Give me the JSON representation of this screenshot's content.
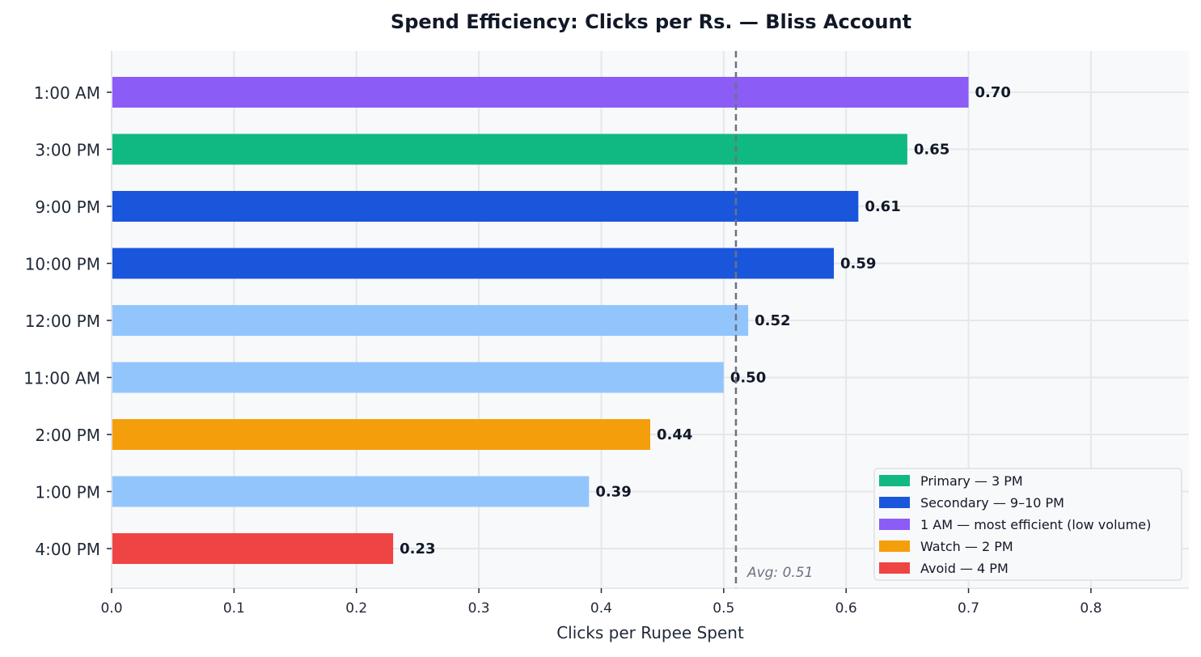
{
  "chart_data": {
    "type": "bar",
    "orientation": "horizontal",
    "title": "Spend Efficiency: Clicks per Rs.  —  Bliss Account",
    "xlabel": "Clicks per Rupee Spent",
    "ylabel": "",
    "xlim": [
      0,
      0.88
    ],
    "xticks": [
      "0.0",
      "0.1",
      "0.2",
      "0.3",
      "0.4",
      "0.5",
      "0.6",
      "0.7",
      "0.8"
    ],
    "grid": true,
    "categories": [
      "1:00 AM",
      "3:00 PM",
      "9:00 PM",
      "10:00 PM",
      "12:00 PM",
      "11:00 AM",
      "2:00 PM",
      "1:00 PM",
      "4:00 PM"
    ],
    "values": [
      0.7,
      0.65,
      0.61,
      0.59,
      0.52,
      0.5,
      0.44,
      0.39,
      0.23
    ],
    "data_labels": [
      "0.70",
      "0.65",
      "0.61",
      "0.59",
      "0.52",
      "0.50",
      "0.44",
      "0.39",
      "0.23"
    ],
    "bar_colors": [
      "#8b5cf6",
      "#10b981",
      "#1a56db",
      "#1a56db",
      "#93c5fd",
      "#93c5fd",
      "#f59e0b",
      "#93c5fd",
      "#ef4444"
    ],
    "reference_line": {
      "value": 0.51,
      "label": "Avg: 0.51",
      "color": "#6b7280",
      "style": "dashed"
    },
    "legend": {
      "placement": "lower-right",
      "entries": [
        {
          "label": "Primary — 3 PM",
          "color": "#10b981"
        },
        {
          "label": "Secondary — 9–10 PM",
          "color": "#1a56db"
        },
        {
          "label": "1 AM — most efficient (low volume)",
          "color": "#8b5cf6"
        },
        {
          "label": "Watch — 2 PM",
          "color": "#f59e0b"
        },
        {
          "label": "Avoid — 4 PM",
          "color": "#ef4444"
        }
      ]
    }
  }
}
